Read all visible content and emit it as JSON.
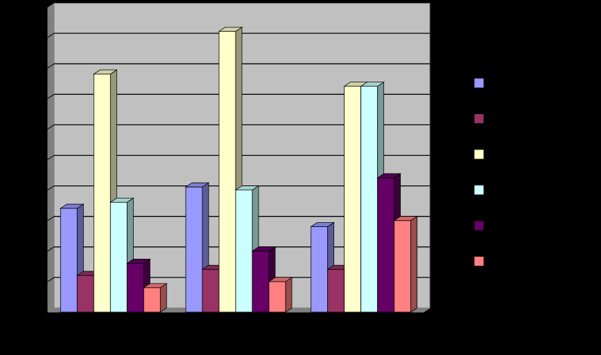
{
  "chart_data": {
    "type": "bar",
    "style": "3d-clustered-column",
    "categories": [
      "",
      "",
      ""
    ],
    "series": [
      {
        "color": "#9999FF",
        "values": [
          3.4,
          4.1,
          2.8
        ]
      },
      {
        "color": "#993366",
        "values": [
          1.2,
          1.4,
          1.4
        ]
      },
      {
        "color": "#FFFFCC",
        "values": [
          7.8,
          9.2,
          7.4
        ]
      },
      {
        "color": "#CCFFFF",
        "values": [
          3.6,
          4.0,
          7.4
        ]
      },
      {
        "color": "#660066",
        "values": [
          1.6,
          2.0,
          4.4
        ]
      },
      {
        "color": "#FF8080",
        "values": [
          0.8,
          1.0,
          3.0
        ]
      }
    ],
    "ylim": [
      0,
      10
    ],
    "y_step": 1,
    "grid": true,
    "legend_position": "right",
    "plot_background": "#C0C0C0",
    "grid_color": "#000000"
  }
}
